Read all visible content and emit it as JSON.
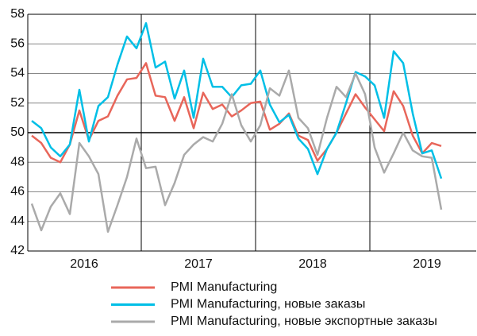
{
  "chart_data": {
    "type": "line",
    "categories": [
      null,
      null,
      null,
      null,
      null,
      "2016",
      null,
      null,
      null,
      null,
      null,
      null,
      null,
      null,
      null,
      null,
      null,
      "2017",
      null,
      null,
      null,
      null,
      null,
      null,
      null,
      null,
      null,
      null,
      null,
      "2018",
      null,
      null,
      null,
      null,
      null,
      null,
      null,
      null,
      null,
      null,
      null,
      "2019",
      null,
      null
    ],
    "series": [
      {
        "name": "PMI Manufacturing",
        "color": "#e8665a",
        "values": [
          49.8,
          49.3,
          48.3,
          48.0,
          49.2,
          51.5,
          49.5,
          50.8,
          51.1,
          52.5,
          53.6,
          53.7,
          54.7,
          52.5,
          52.4,
          50.8,
          52.4,
          50.3,
          52.7,
          51.6,
          51.9,
          51.1,
          51.5,
          52.0,
          52.1,
          50.2,
          50.6,
          51.3,
          49.8,
          49.5,
          48.1,
          48.9,
          50.0,
          51.3,
          52.6,
          51.7,
          50.9,
          50.1,
          52.8,
          51.8,
          49.8,
          48.6,
          49.3,
          49.1
        ]
      },
      {
        "name": "PMI Manufacturing, новые заказы",
        "color": "#00bfe6",
        "values": [
          50.8,
          50.3,
          49.0,
          48.4,
          49.2,
          52.9,
          49.4,
          51.8,
          52.4,
          54.6,
          56.5,
          55.7,
          57.4,
          54.4,
          54.8,
          52.3,
          54.2,
          51.0,
          55.0,
          53.1,
          53.1,
          52.4,
          53.2,
          53.3,
          54.2,
          51.9,
          50.7,
          51.2,
          49.6,
          48.9,
          47.2,
          48.9,
          50.0,
          52.0,
          54.1,
          53.8,
          53.2,
          51.0,
          55.5,
          54.7,
          51.3,
          48.6,
          48.8,
          46.9
        ]
      },
      {
        "name": "PMI Manufacturing, новые экспортные заказы",
        "color": "#aaaaaa",
        "values": [
          45.2,
          43.4,
          45.0,
          45.9,
          44.5,
          49.3,
          48.4,
          47.2,
          43.3,
          45.1,
          47.0,
          49.6,
          47.6,
          47.7,
          45.1,
          46.6,
          48.5,
          49.2,
          49.7,
          49.4,
          50.6,
          52.6,
          50.5,
          49.4,
          50.5,
          53.0,
          52.5,
          54.2,
          51.0,
          50.3,
          48.5,
          51.0,
          53.1,
          52.4,
          54.0,
          52.6,
          49.0,
          47.3,
          48.6,
          50.0,
          48.8,
          48.4,
          48.3,
          44.8
        ]
      }
    ],
    "ylim": [
      42,
      58
    ],
    "yticks": [
      42,
      44,
      46,
      48,
      50,
      52,
      54,
      56,
      58
    ],
    "grid": true
  }
}
